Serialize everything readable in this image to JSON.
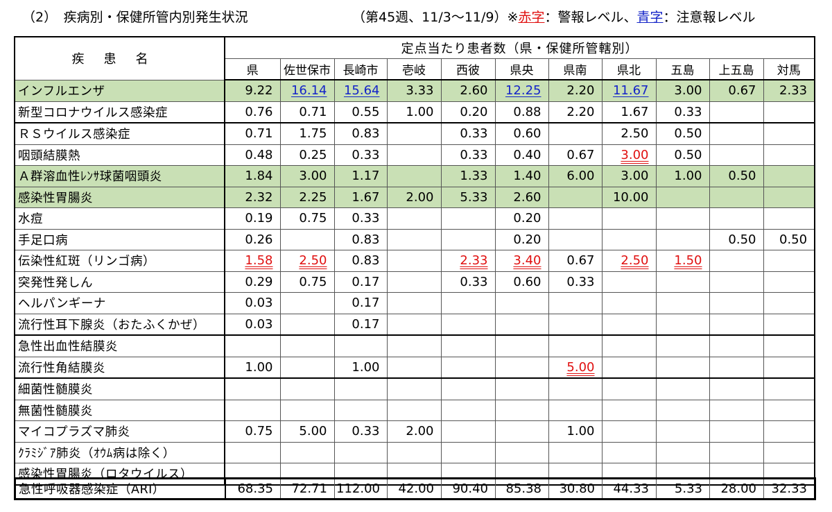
{
  "title": {
    "main": "（2）　疾病別・保健所管内別発生状況",
    "week": "（第45週、11/3～11/9）※",
    "legend_red": "赤字",
    "legend_red_desc": "：警報レベル、",
    "legend_blue": "青字",
    "legend_blue_desc": "：注意報レベル"
  },
  "colors": {
    "alarm": "#e01010",
    "advisory": "#1424c8",
    "highlight_row": "#c9e0b5"
  },
  "table": {
    "disease_header": "疾患名",
    "group_header": "定点当たり患者数（県・保健所管轄別）",
    "columns": [
      "県",
      "佐世保市",
      "長崎市",
      "壱岐",
      "西彼",
      "県央",
      "県南",
      "県北",
      "五島",
      "上五島",
      "対馬"
    ],
    "rows": [
      {
        "name": "インフルエンザ",
        "green": true,
        "values": [
          "9.22",
          "16.14",
          "15.64",
          "3.33",
          "2.60",
          "12.25",
          "2.20",
          "11.67",
          "3.00",
          "0.67",
          "2.33"
        ],
        "levels": [
          "",
          "blue",
          "blue",
          "",
          "",
          "blue",
          "",
          "blue",
          "",
          "",
          ""
        ]
      },
      {
        "name": "新型コロナウイルス感染症",
        "values": [
          "0.76",
          "0.71",
          "0.55",
          "1.00",
          "0.20",
          "0.88",
          "2.20",
          "1.67",
          "0.33",
          "",
          ""
        ]
      },
      {
        "name": "ＲＳウイルス感染症",
        "sep": true,
        "values": [
          "0.71",
          "1.75",
          "0.83",
          "",
          "0.33",
          "0.60",
          "",
          "2.50",
          "0.50",
          "",
          ""
        ]
      },
      {
        "name": "咽頭結膜熱",
        "values": [
          "0.48",
          "0.25",
          "0.33",
          "",
          "0.33",
          "0.40",
          "0.67",
          "3.00",
          "0.50",
          "",
          ""
        ],
        "levels": [
          "",
          "",
          "",
          "",
          "",
          "",
          "",
          "red",
          "",
          "",
          ""
        ]
      },
      {
        "name": "Ａ群溶血性ﾚﾝｻ球菌咽頭炎",
        "green": true,
        "values": [
          "1.84",
          "3.00",
          "1.17",
          "",
          "1.33",
          "1.40",
          "6.00",
          "3.00",
          "1.00",
          "0.50",
          ""
        ]
      },
      {
        "name": "感染性胃腸炎",
        "green": true,
        "values": [
          "2.32",
          "2.25",
          "1.67",
          "2.00",
          "5.33",
          "2.60",
          "",
          "10.00",
          "",
          "",
          ""
        ]
      },
      {
        "name": "水痘",
        "values": [
          "0.19",
          "0.75",
          "0.33",
          "",
          "",
          "0.20",
          "",
          "",
          "",
          "",
          ""
        ]
      },
      {
        "name": "手足口病",
        "values": [
          "0.26",
          "",
          "0.83",
          "",
          "",
          "0.20",
          "",
          "",
          "",
          "0.50",
          "0.50"
        ]
      },
      {
        "name": "伝染性紅斑（リンゴ病）",
        "values": [
          "1.58",
          "2.50",
          "0.83",
          "",
          "2.33",
          "3.40",
          "0.67",
          "2.50",
          "1.50",
          "",
          ""
        ],
        "levels": [
          "red",
          "red",
          "",
          "",
          "red",
          "red",
          "",
          "red",
          "red",
          "",
          ""
        ]
      },
      {
        "name": "突発性発しん",
        "values": [
          "0.29",
          "0.75",
          "0.17",
          "",
          "0.33",
          "0.60",
          "0.33",
          "",
          "",
          "",
          ""
        ]
      },
      {
        "name": "ヘルパンギーナ",
        "values": [
          "0.03",
          "",
          "0.17",
          "",
          "",
          "",
          "",
          "",
          "",
          "",
          ""
        ]
      },
      {
        "name": "流行性耳下腺炎（おたふくかぜ）",
        "values": [
          "0.03",
          "",
          "0.17",
          "",
          "",
          "",
          "",
          "",
          "",
          "",
          ""
        ]
      },
      {
        "name": "急性出血性結膜炎",
        "sep": true,
        "values": [
          "",
          "",
          "",
          "",
          "",
          "",
          "",
          "",
          "",
          "",
          ""
        ]
      },
      {
        "name": "流行性角結膜炎",
        "values": [
          "1.00",
          "",
          "1.00",
          "",
          "",
          "",
          "5.00",
          "",
          "",
          "",
          ""
        ],
        "levels": [
          "",
          "",
          "",
          "",
          "",
          "",
          "red",
          "",
          "",
          "",
          ""
        ]
      },
      {
        "name": "細菌性髄膜炎",
        "sep": true,
        "values": [
          "",
          "",
          "",
          "",
          "",
          "",
          "",
          "",
          "",
          "",
          ""
        ]
      },
      {
        "name": "無菌性髄膜炎",
        "values": [
          "",
          "",
          "",
          "",
          "",
          "",
          "",
          "",
          "",
          "",
          ""
        ]
      },
      {
        "name": "マイコプラズマ肺炎",
        "values": [
          "0.75",
          "5.00",
          "0.33",
          "2.00",
          "",
          "",
          "1.00",
          "",
          "",
          "",
          ""
        ]
      },
      {
        "name": "ｸﾗﾐｼﾞｱ肺炎（ｵｳﾑ病は除く）",
        "values": [
          "",
          "",
          "",
          "",
          "",
          "",
          "",
          "",
          "",
          "",
          ""
        ]
      },
      {
        "name": "感染性胃腸炎（ロタウイルス）",
        "values": [
          "",
          "",
          "",
          "",
          "",
          "",
          "",
          "",
          "",
          "",
          ""
        ]
      }
    ]
  },
  "ari": {
    "name": "急性呼吸器感染症（ARI）",
    "values": [
      "68.35",
      "72.71",
      "112.00",
      "42.00",
      "90.40",
      "85.38",
      "30.80",
      "44.33",
      "5.33",
      "28.00",
      "32.33"
    ]
  }
}
